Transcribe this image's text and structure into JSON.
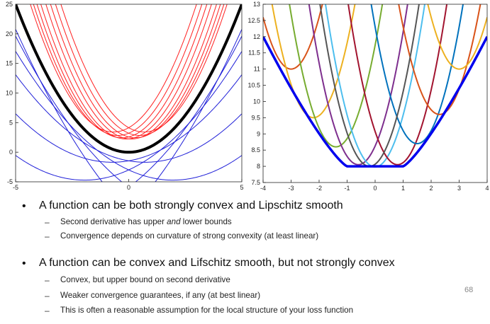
{
  "chart_data": [
    {
      "type": "line",
      "title": "",
      "xlabel": "",
      "ylabel": "",
      "xlim": [
        -5,
        5
      ],
      "ylim": [
        -5,
        25
      ],
      "x_ticks": [
        "-5",
        "0",
        "5"
      ],
      "y_ticks": [
        "-5",
        "0",
        "5",
        "10",
        "15",
        "20",
        "25"
      ],
      "grid": false,
      "legend": "none",
      "series": [
        {
          "kind": "function",
          "color": "#000000",
          "curve": "y = x^2",
          "points": [
            [
              -5,
              25
            ],
            [
              -4,
              16
            ],
            [
              -3,
              9
            ],
            [
              -2,
              4
            ],
            [
              -1,
              1
            ],
            [
              0,
              0
            ],
            [
              1,
              1
            ],
            [
              2,
              4
            ],
            [
              3,
              9
            ],
            [
              4,
              16
            ],
            [
              5,
              25
            ]
          ]
        },
        {
          "kind": "upper-quadratic-bounds",
          "color": "#ff2020",
          "vertex_x": [
            -1.8,
            -1.3,
            -0.8,
            -0.3,
            0.3,
            0.8,
            1.3,
            1.8
          ],
          "curvature": 1.6
        },
        {
          "kind": "lower-quadratic-bounds",
          "color": "#2020d8",
          "vertex_x": [
            -3.6,
            -2.6,
            -1.6,
            -0.6,
            0.6,
            1.6,
            2.6,
            3.6
          ],
          "curvature": 0.45
        }
      ]
    },
    {
      "type": "line",
      "title": "",
      "xlabel": "",
      "ylabel": "",
      "xlim": [
        -4,
        4
      ],
      "ylim": [
        7.5,
        13
      ],
      "x_ticks": [
        "-4",
        "-3",
        "-2",
        "-1",
        "0",
        "1",
        "2",
        "3",
        "4"
      ],
      "y_ticks": [
        "7.5",
        "8",
        "8.5",
        "9",
        "9.5",
        "10",
        "10.5",
        "11",
        "11.5",
        "12",
        "12.5",
        "13"
      ],
      "grid": false,
      "legend": "none",
      "function_color": "#0000ee",
      "parabolas": [
        {
          "vertex": [
            -3,
            11.0
          ],
          "color": "#d95319"
        },
        {
          "vertex": [
            -2.2,
            9.5
          ],
          "color": "#edb120"
        },
        {
          "vertex": [
            -1.4,
            8.6
          ],
          "color": "#77ac30"
        },
        {
          "vertex": [
            -0.6,
            8.05
          ],
          "color": "#7e2f8e"
        },
        {
          "vertex": [
            0,
            7.98
          ],
          "color": "#4dbeee"
        },
        {
          "vertex": [
            0.8,
            8.05
          ],
          "color": "#a2142f"
        },
        {
          "vertex": [
            1.5,
            8.7
          ],
          "color": "#0072bd"
        },
        {
          "vertex": [
            2.3,
            9.6
          ],
          "color": "#d95319"
        },
        {
          "vertex": [
            3,
            11.0
          ],
          "color": "#edb120"
        },
        {
          "vertex": [
            -0.2,
            8.0
          ],
          "color": "#555555"
        }
      ]
    }
  ],
  "bullets": [
    {
      "text": "A function can be both strongly convex and Lipschitz smooth",
      "subs": [
        [
          "Second derivative has upper ",
          "and",
          " lower bounds"
        ],
        [
          "Convergence depends on curvature of strong convexity (at least linear)"
        ]
      ]
    },
    {
      "text": "A function can be convex and Lifschitz smooth, but not strongly convex",
      "subs": [
        [
          "Convex, but upper bound on second derivative"
        ],
        [
          "Weaker convergence guarantees, if any (at best linear)"
        ],
        [
          "This is often a reasonable assumption for the local structure of your loss function"
        ]
      ]
    }
  ],
  "bullet_glyph": "•",
  "dash_glyph": "–",
  "page_number": "68"
}
